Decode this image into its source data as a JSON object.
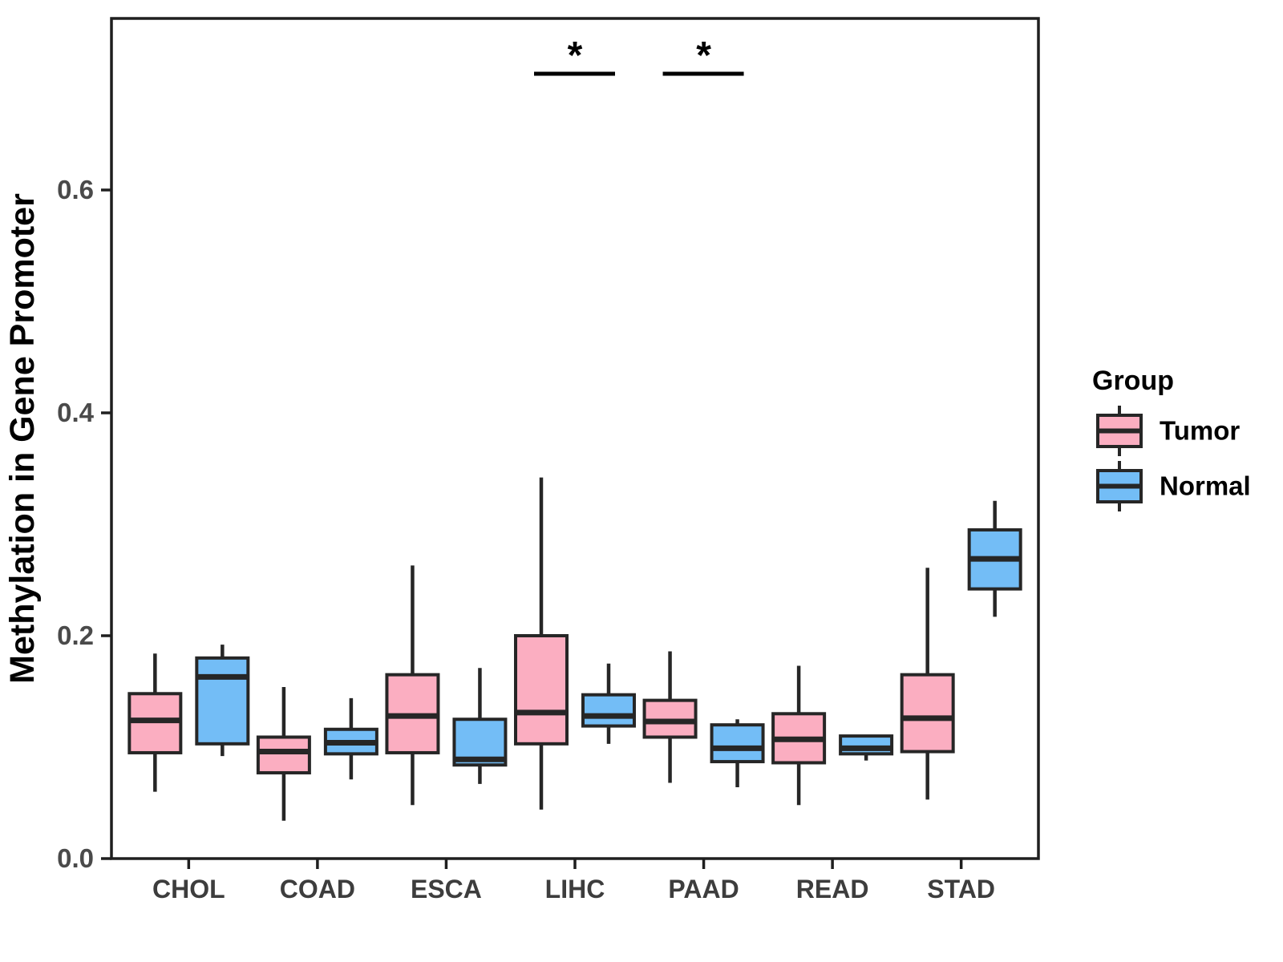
{
  "figure": {
    "y_axis_title": "Methylation in Gene Promoter",
    "x_axis_title": ""
  },
  "chart_data": {
    "type": "boxplot",
    "title": "",
    "xlabel": "",
    "ylabel": "Methylation in Gene Promoter",
    "categories": [
      "CHOL",
      "COAD",
      "ESCA",
      "LIHC",
      "PAAD",
      "READ",
      "STAD"
    ],
    "y_ticks": {
      "values": [
        0.0,
        0.2,
        0.4,
        0.6
      ],
      "labels": [
        "0.0",
        "0.2",
        "0.4",
        "0.6"
      ]
    },
    "ylim": [
      0,
      0.75
    ],
    "grid": false,
    "legend": {
      "title": "Group",
      "position": "right",
      "items": [
        {
          "label": "Tumor",
          "color": "#FBAEC1"
        },
        {
          "label": "Normal",
          "color": "#73BDF6"
        }
      ]
    },
    "series": [
      {
        "name": "Tumor",
        "color": "#FBAEC1",
        "boxes": [
          {
            "category": "CHOL",
            "min": 0.06,
            "q1": 0.095,
            "median": 0.124,
            "q3": 0.148,
            "max": 0.184
          },
          {
            "category": "COAD",
            "min": 0.034,
            "q1": 0.077,
            "median": 0.096,
            "q3": 0.109,
            "max": 0.154
          },
          {
            "category": "ESCA",
            "min": 0.048,
            "q1": 0.095,
            "median": 0.128,
            "q3": 0.165,
            "max": 0.263
          },
          {
            "category": "LIHC",
            "min": 0.044,
            "q1": 0.103,
            "median": 0.131,
            "q3": 0.2,
            "max": 0.342
          },
          {
            "category": "PAAD",
            "min": 0.068,
            "q1": 0.109,
            "median": 0.123,
            "q3": 0.142,
            "max": 0.186
          },
          {
            "category": "READ",
            "min": 0.048,
            "q1": 0.086,
            "median": 0.107,
            "q3": 0.13,
            "max": 0.173
          },
          {
            "category": "STAD",
            "min": 0.053,
            "q1": 0.096,
            "median": 0.126,
            "q3": 0.165,
            "max": 0.261
          }
        ]
      },
      {
        "name": "Normal",
        "color": "#73BDF6",
        "boxes": [
          {
            "category": "CHOL",
            "min": 0.092,
            "q1": 0.103,
            "median": 0.163,
            "q3": 0.18,
            "max": 0.192
          },
          {
            "category": "COAD",
            "min": 0.071,
            "q1": 0.094,
            "median": 0.104,
            "q3": 0.116,
            "max": 0.144
          },
          {
            "category": "ESCA",
            "min": 0.067,
            "q1": 0.084,
            "median": 0.089,
            "q3": 0.125,
            "max": 0.171
          },
          {
            "category": "LIHC",
            "min": 0.103,
            "q1": 0.119,
            "median": 0.128,
            "q3": 0.147,
            "max": 0.175
          },
          {
            "category": "PAAD",
            "min": 0.064,
            "q1": 0.087,
            "median": 0.099,
            "q3": 0.12,
            "max": 0.125
          },
          {
            "category": "READ",
            "min": 0.088,
            "q1": 0.094,
            "median": 0.099,
            "q3": 0.11,
            "max": 0.11
          },
          {
            "category": "STAD",
            "min": 0.217,
            "q1": 0.242,
            "median": 0.269,
            "q3": 0.295,
            "max": 0.321
          }
        ]
      }
    ],
    "significance": [
      {
        "category": "LIHC",
        "label": "*"
      },
      {
        "category": "PAAD",
        "label": "*"
      }
    ],
    "style": {
      "box_border_color": "#262626",
      "frame_color": "#1f1f1f",
      "tick_label_color": "#4a4a4a",
      "category_label_color": "#3d3d3d",
      "title_color": "#000000",
      "annotation_color": "#000000",
      "background": "#ffffff"
    }
  }
}
